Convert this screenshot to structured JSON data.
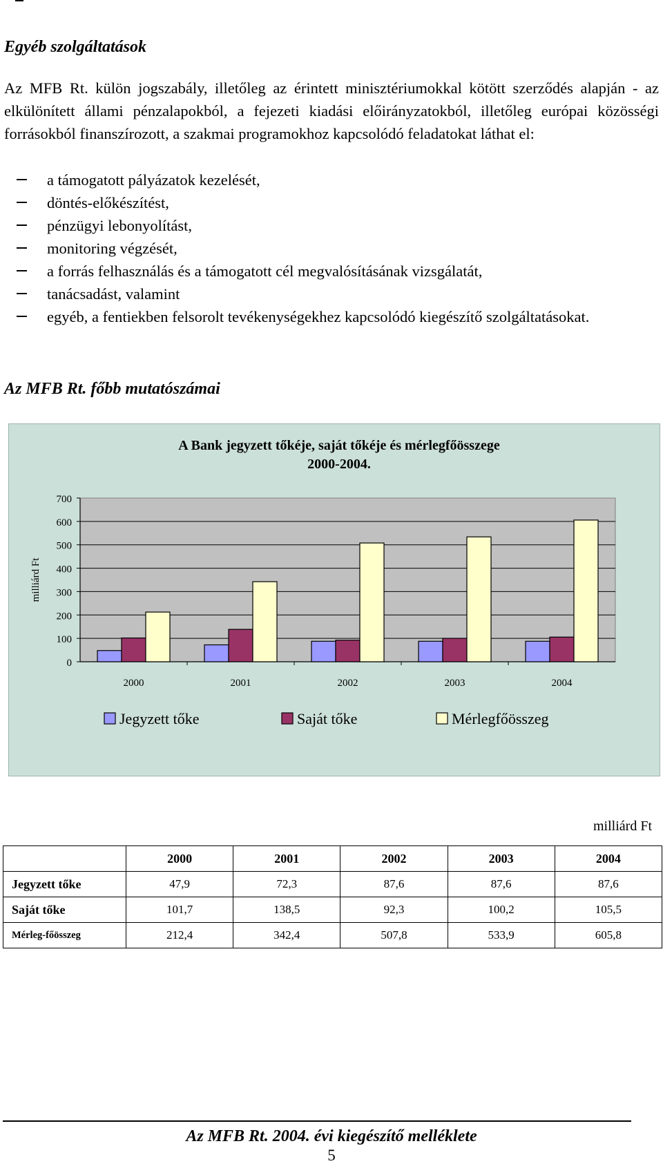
{
  "sections": {
    "services_title": "Egyéb szolgáltatások",
    "indicators_title": "Az MFB Rt. főbb mutatószámai"
  },
  "intro_paragraph": "Az MFB Rt. külön jogszabály, illetőleg az érintett minisztériumokkal kötött szerződés alapján - az elkülönített állami pénzalapokból, a fejezeti kiadási előirányzatokból, illetőleg európai közösségi forrásokból finanszírozott, a szakmai programokhoz kapcsolódó feladatokat láthat el:",
  "tasks": [
    "a támogatott pályázatok kezelését,",
    "döntés-előkészítést,",
    "pénzügyi lebonyolítást,",
    "monitoring végzését,",
    "a forrás felhasználás és a támogatott cél megvalósításának vizsgálatát,",
    "tanácsadást, valamint",
    "egyéb, a fentiekben felsorolt tevékenységekhez kapcsolódó kiegészítő szolgáltatásokat."
  ],
  "chart_data": {
    "type": "bar",
    "title": "A Bank jegyzett tőkéje, saját tőkéje és mérlegfőösszege",
    "subtitle": "2000-2004.",
    "ylabel": "milliárd Ft",
    "xlabel": "",
    "categories": [
      "2000",
      "2001",
      "2002",
      "2003",
      "2004"
    ],
    "series": [
      {
        "name": "Jegyzett tőke",
        "values": [
          47.9,
          72.3,
          87.6,
          87.6,
          87.6
        ],
        "color": "#9999ff"
      },
      {
        "name": "Saját tőke",
        "values": [
          101.7,
          138.5,
          92.3,
          100.2,
          105.5
        ],
        "color": "#993366"
      },
      {
        "name": "Mérlegfőösszeg",
        "values": [
          212.4,
          342.4,
          507.8,
          533.9,
          605.8
        ],
        "color": "#ffffcc"
      }
    ],
    "ylim": [
      0,
      700
    ],
    "yticks": [
      0,
      100,
      200,
      300,
      400,
      500,
      600,
      700
    ],
    "grid": true,
    "legend": "bottom",
    "plot_background": "#c0c0c0",
    "panel_background": "#cce0da"
  },
  "table": {
    "unit": "milliárd Ft",
    "headers": [
      "",
      "2000",
      "2001",
      "2002",
      "2003",
      "2004"
    ],
    "rows": [
      {
        "label": "Jegyzett tőke",
        "values": [
          "47,9",
          "72,3",
          "87,6",
          "87,6",
          "87,6"
        ]
      },
      {
        "label": "Saját tőke",
        "values": [
          "101,7",
          "138,5",
          "92,3",
          "100,2",
          "105,5"
        ]
      },
      {
        "label": "Mérleg-főösszeg",
        "values": [
          "212,4",
          "342,4",
          "507,8",
          "533,9",
          "605,8"
        ]
      }
    ]
  },
  "footer": {
    "title": "Az MFB Rt. 2004. évi kiegészítő melléklete",
    "page_number": "5"
  }
}
